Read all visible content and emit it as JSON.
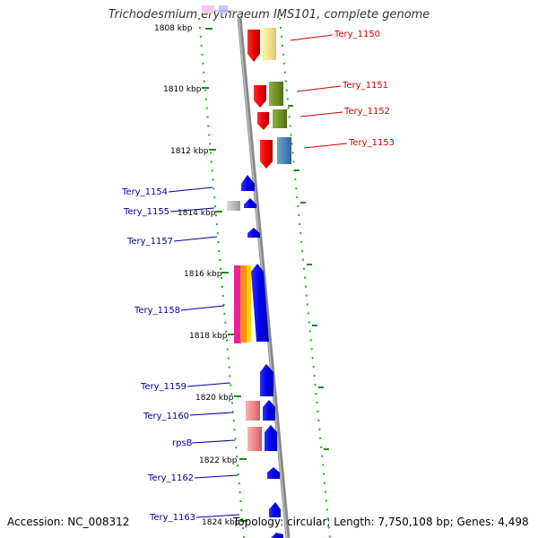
{
  "title": "Trichodesmium erythraeum IMS101, complete genome",
  "footer": {
    "accession": "Accession: NC_008312",
    "summary": "Topology: circular; Length: 7,750,108 bp; Genes: 4,498"
  },
  "scale_labels": [
    "1808 kbp",
    "1810 kbp",
    "1812 kbp",
    "1814 kbp",
    "1816 kbp",
    "1818 kbp",
    "1820 kbp",
    "1822 kbp",
    "1824 kbp"
  ],
  "gene_labels_right": [
    "Tery_1150",
    "Tery_1151",
    "Tery_1152",
    "Tery_1153"
  ],
  "gene_labels_left": [
    "Tery_1154",
    "Tery_1155",
    "Tery_1157",
    "Tery_1158",
    "Tery_1159",
    "Tery_1160",
    "rpsB",
    "Tery_1162",
    "Tery_1163"
  ],
  "colors": {
    "backbone": "#888888",
    "dots": "#22aa22",
    "forward_gene": "#ee0000",
    "reverse_gene": "#0000ee",
    "label_right": "#cc0000",
    "label_left": "#000099"
  }
}
